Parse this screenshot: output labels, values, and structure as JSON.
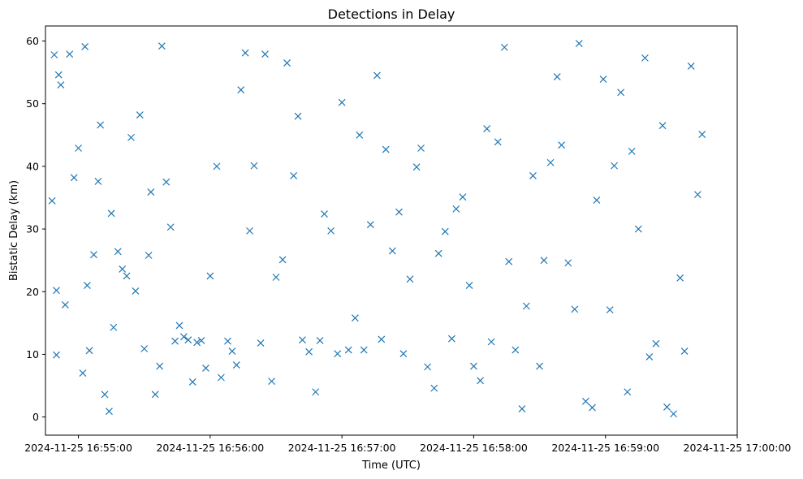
{
  "chart_data": {
    "type": "scatter",
    "title": "Detections in Delay",
    "xlabel": "Time (UTC)",
    "ylabel": "Bistatic Delay (km)",
    "x_range": [
      "2024-11-25 16:54:45",
      "2024-11-25 17:00:00"
    ],
    "xlim": [
      "2024-11-25 16:54:45",
      "2024-11-25 17:00:00"
    ],
    "ylim": [
      -2.9,
      62.4
    ],
    "x_ticks": [
      "2024-11-25 16:55:00",
      "2024-11-25 16:56:00",
      "2024-11-25 16:57:00",
      "2024-11-25 16:58:00",
      "2024-11-25 16:59:00",
      "2024-11-25 17:00:00"
    ],
    "y_ticks": [
      0,
      10,
      20,
      30,
      40,
      50,
      60
    ],
    "marker": "x",
    "color": "#1f77b4",
    "grid": false,
    "series": [
      {
        "x": [
          "2024-11-25 16:54:48",
          "2024-11-25 16:54:49",
          "2024-11-25 16:54:50",
          "2024-11-25 16:54:50",
          "2024-11-25 16:54:51",
          "2024-11-25 16:54:52",
          "2024-11-25 16:54:54",
          "2024-11-25 16:54:56",
          "2024-11-25 16:54:58",
          "2024-11-25 16:55:00",
          "2024-11-25 16:55:02",
          "2024-11-25 16:55:03",
          "2024-11-25 16:55:04",
          "2024-11-25 16:55:05",
          "2024-11-25 16:55:07",
          "2024-11-25 16:55:09",
          "2024-11-25 16:55:10",
          "2024-11-25 16:55:12",
          "2024-11-25 16:55:14",
          "2024-11-25 16:55:15",
          "2024-11-25 16:55:16",
          "2024-11-25 16:55:18",
          "2024-11-25 16:55:20",
          "2024-11-25 16:55:22",
          "2024-11-25 16:55:24",
          "2024-11-25 16:55:26",
          "2024-11-25 16:55:28",
          "2024-11-25 16:55:30",
          "2024-11-25 16:55:32",
          "2024-11-25 16:55:33",
          "2024-11-25 16:55:35",
          "2024-11-25 16:55:37",
          "2024-11-25 16:55:38",
          "2024-11-25 16:55:40",
          "2024-11-25 16:55:42",
          "2024-11-25 16:55:44",
          "2024-11-25 16:55:46",
          "2024-11-25 16:55:48",
          "2024-11-25 16:55:50",
          "2024-11-25 16:55:52",
          "2024-11-25 16:55:54",
          "2024-11-25 16:55:56",
          "2024-11-25 16:55:58",
          "2024-11-25 16:56:00",
          "2024-11-25 16:56:03",
          "2024-11-25 16:56:05",
          "2024-11-25 16:56:08",
          "2024-11-25 16:56:10",
          "2024-11-25 16:56:12",
          "2024-11-25 16:56:14",
          "2024-11-25 16:56:16",
          "2024-11-25 16:56:18",
          "2024-11-25 16:56:20",
          "2024-11-25 16:56:23",
          "2024-11-25 16:56:25",
          "2024-11-25 16:56:28",
          "2024-11-25 16:56:30",
          "2024-11-25 16:56:33",
          "2024-11-25 16:56:35",
          "2024-11-25 16:56:38",
          "2024-11-25 16:56:40",
          "2024-11-25 16:56:42",
          "2024-11-25 16:56:45",
          "2024-11-25 16:56:48",
          "2024-11-25 16:56:50",
          "2024-11-25 16:56:52",
          "2024-11-25 16:56:55",
          "2024-11-25 16:56:58",
          "2024-11-25 16:57:00",
          "2024-11-25 16:57:03",
          "2024-11-25 16:57:06",
          "2024-11-25 16:57:08",
          "2024-11-25 16:57:10",
          "2024-11-25 16:57:13",
          "2024-11-25 16:57:16",
          "2024-11-25 16:57:18",
          "2024-11-25 16:57:20",
          "2024-11-25 16:57:23",
          "2024-11-25 16:57:26",
          "2024-11-25 16:57:28",
          "2024-11-25 16:57:31",
          "2024-11-25 16:57:34",
          "2024-11-25 16:57:36",
          "2024-11-25 16:57:39",
          "2024-11-25 16:57:42",
          "2024-11-25 16:57:44",
          "2024-11-25 16:57:47",
          "2024-11-25 16:57:50",
          "2024-11-25 16:57:52",
          "2024-11-25 16:57:55",
          "2024-11-25 16:57:58",
          "2024-11-25 16:58:00",
          "2024-11-25 16:58:03",
          "2024-11-25 16:58:06",
          "2024-11-25 16:58:08",
          "2024-11-25 16:58:11",
          "2024-11-25 16:58:14",
          "2024-11-25 16:58:16",
          "2024-11-25 16:58:19",
          "2024-11-25 16:58:22",
          "2024-11-25 16:58:24",
          "2024-11-25 16:58:27",
          "2024-11-25 16:58:30",
          "2024-11-25 16:58:32",
          "2024-11-25 16:58:35",
          "2024-11-25 16:58:38",
          "2024-11-25 16:58:40",
          "2024-11-25 16:58:43",
          "2024-11-25 16:58:46",
          "2024-11-25 16:58:48",
          "2024-11-25 16:58:51",
          "2024-11-25 16:58:54",
          "2024-11-25 16:58:56",
          "2024-11-25 16:58:59",
          "2024-11-25 16:59:02",
          "2024-11-25 16:59:04",
          "2024-11-25 16:59:07",
          "2024-11-25 16:59:10",
          "2024-11-25 16:59:12",
          "2024-11-25 16:59:15",
          "2024-11-25 16:59:18",
          "2024-11-25 16:59:20",
          "2024-11-25 16:59:23",
          "2024-11-25 16:59:26",
          "2024-11-25 16:59:28",
          "2024-11-25 16:59:31",
          "2024-11-25 16:59:34",
          "2024-11-25 16:59:36",
          "2024-11-25 16:59:39",
          "2024-11-25 16:59:42",
          "2024-11-25 16:59:44"
        ],
        "y": [
          34.5,
          57.8,
          20.2,
          9.9,
          54.6,
          53.0,
          17.9,
          57.9,
          38.2,
          42.9,
          7.0,
          59.1,
          21.0,
          10.6,
          25.9,
          37.6,
          46.6,
          3.6,
          0.9,
          32.5,
          14.3,
          26.4,
          23.6,
          22.5,
          44.6,
          20.1,
          48.2,
          10.9,
          25.8,
          35.9,
          3.6,
          8.1,
          59.2,
          37.5,
          30.3,
          12.1,
          14.6,
          12.8,
          12.3,
          5.6,
          11.9,
          12.2,
          7.8,
          22.5,
          40.0,
          6.3,
          12.1,
          10.5,
          8.3,
          52.2,
          58.1,
          29.7,
          40.1,
          11.8,
          57.9,
          5.7,
          22.3,
          25.1,
          56.5,
          38.5,
          48.0,
          12.3,
          10.4,
          4.0,
          12.2,
          32.4,
          29.7,
          10.1,
          50.2,
          10.7,
          15.8,
          45.0,
          10.7,
          30.7,
          54.5,
          12.4,
          42.7,
          26.5,
          32.7,
          10.1,
          22.0,
          39.9,
          42.9,
          8.0,
          4.6,
          26.1,
          29.6,
          12.5,
          33.2,
          35.1,
          21.0,
          8.1,
          5.8,
          46.0,
          12.0,
          43.9,
          59.0,
          24.8,
          10.7,
          1.3,
          17.7,
          38.5,
          8.1,
          25.0,
          40.6,
          54.3,
          43.4,
          24.6,
          17.2,
          59.6,
          2.5,
          1.5,
          34.6,
          53.9,
          17.1,
          40.1,
          51.8,
          4.0,
          42.4,
          30.0,
          57.3,
          9.6,
          11.7,
          46.5,
          1.6,
          0.5,
          22.2,
          10.5,
          56.0,
          35.5,
          45.1
        ]
      }
    ]
  }
}
